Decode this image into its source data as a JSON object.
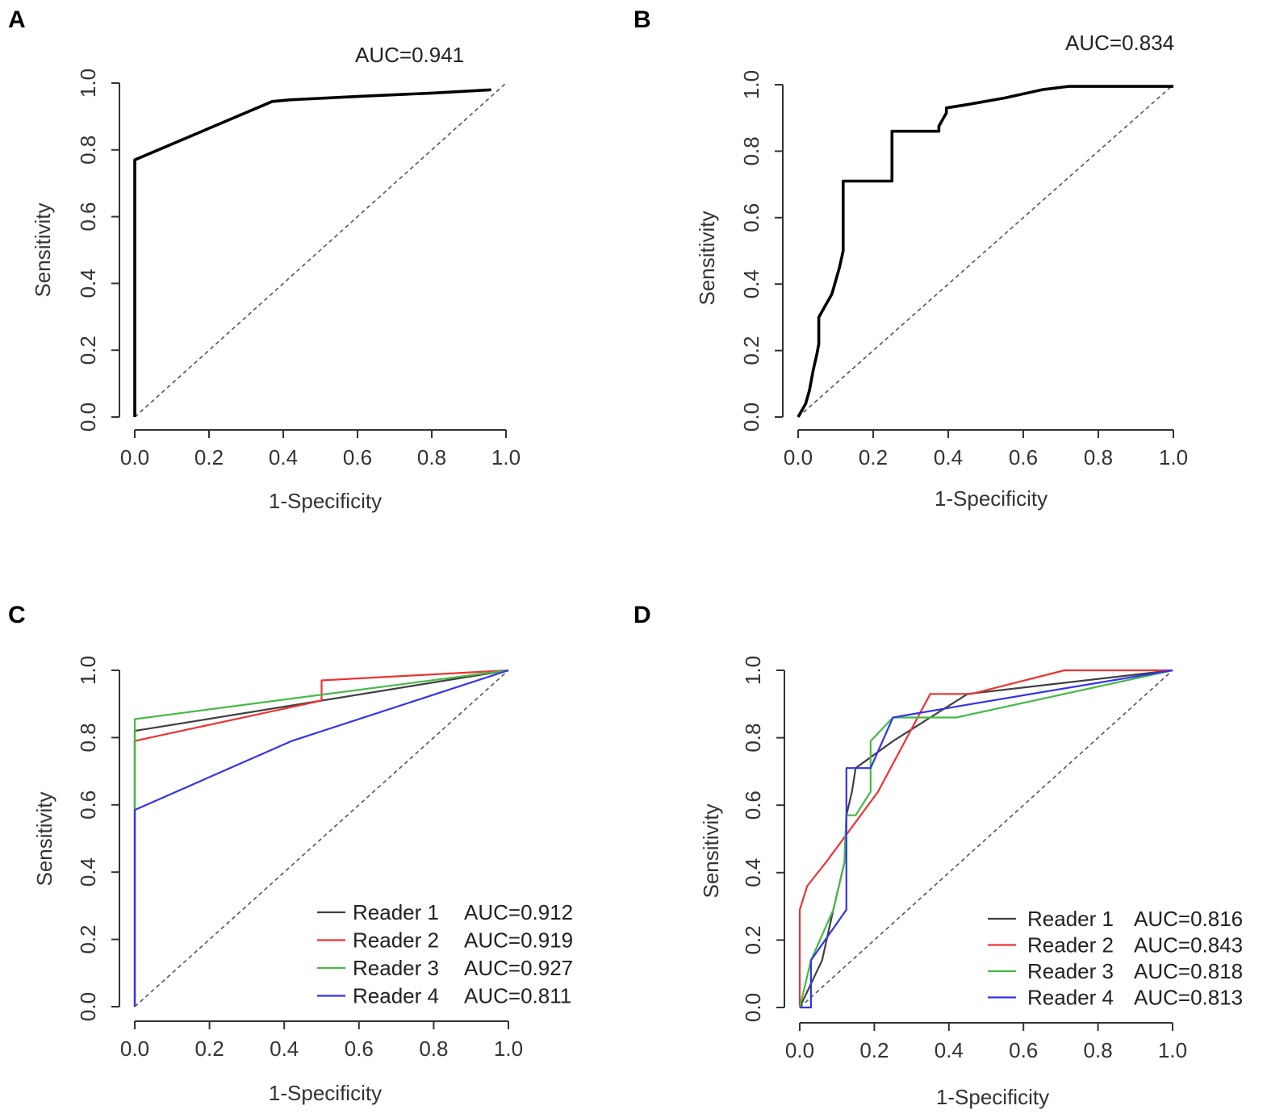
{
  "chart_data": [
    {
      "panel": "A",
      "type": "line",
      "title": "",
      "xlabel": "1-Specificity",
      "ylabel": "Sensitivity",
      "xlim": [
        0,
        1
      ],
      "ylim": [
        0,
        1
      ],
      "xticks": [
        "0.0",
        "0.2",
        "0.4",
        "0.6",
        "0.8",
        "1.0"
      ],
      "yticks": [
        "0.0",
        "0.2",
        "0.4",
        "0.6",
        "0.8",
        "1.0"
      ],
      "auc_text": "AUC=0.941",
      "reference_line": "diagonal",
      "series": [
        {
          "name": "ROC",
          "color": "#000000",
          "x": [
            0.0,
            0.0,
            0.0,
            0.36,
            0.37,
            0.42,
            0.6,
            0.8,
            0.96
          ],
          "y": [
            0.0,
            0.76,
            0.77,
            0.94,
            0.945,
            0.95,
            0.96,
            0.97,
            0.98
          ]
        }
      ]
    },
    {
      "panel": "B",
      "type": "line",
      "title": "",
      "xlabel": "1-Specificity",
      "ylabel": "Sensitivity",
      "xlim": [
        0,
        1
      ],
      "ylim": [
        0,
        1
      ],
      "xticks": [
        "0.0",
        "0.2",
        "0.4",
        "0.6",
        "0.8",
        "1.0"
      ],
      "yticks": [
        "0.0",
        "0.2",
        "0.4",
        "0.6",
        "0.8",
        "1.0"
      ],
      "auc_text": "AUC=0.834",
      "reference_line": "diagonal",
      "series": [
        {
          "name": "ROC",
          "color": "#000000",
          "x": [
            0.0,
            0.02,
            0.03,
            0.04,
            0.05,
            0.055,
            0.055,
            0.07,
            0.09,
            0.11,
            0.12,
            0.12,
            0.25,
            0.25,
            0.375,
            0.375,
            0.395,
            0.395,
            0.45,
            0.55,
            0.65,
            0.72,
            1.0
          ],
          "y": [
            0.0,
            0.04,
            0.08,
            0.14,
            0.19,
            0.22,
            0.3,
            0.33,
            0.37,
            0.45,
            0.5,
            0.71,
            0.71,
            0.86,
            0.86,
            0.875,
            0.915,
            0.93,
            0.94,
            0.96,
            0.985,
            0.995,
            0.995
          ]
        }
      ]
    },
    {
      "panel": "C",
      "type": "line",
      "title": "",
      "xlabel": "1-Specificity",
      "ylabel": "Sensitivity",
      "xlim": [
        0,
        1
      ],
      "ylim": [
        0,
        1
      ],
      "xticks": [
        "0.0",
        "0.2",
        "0.4",
        "0.6",
        "0.8",
        "1.0"
      ],
      "yticks": [
        "0.0",
        "0.2",
        "0.4",
        "0.6",
        "0.8",
        "1.0"
      ],
      "reference_line": "diagonal",
      "legend_position": "bottom-right",
      "series": [
        {
          "name": "Reader 1",
          "auc": "AUC=0.912",
          "color": "#404040",
          "x": [
            0.0,
            0.0,
            1.0
          ],
          "y": [
            0.0,
            0.82,
            1.0
          ]
        },
        {
          "name": "Reader 2",
          "auc": "AUC=0.919",
          "color": "#ee3333",
          "x": [
            0.0,
            0.0,
            0.5,
            0.5,
            1.0
          ],
          "y": [
            0.0,
            0.79,
            0.91,
            0.97,
            1.0
          ]
        },
        {
          "name": "Reader 3",
          "auc": "AUC=0.927",
          "color": "#44bb44",
          "x": [
            0.0,
            0.0,
            1.0
          ],
          "y": [
            0.0,
            0.855,
            1.0
          ]
        },
        {
          "name": "Reader 4",
          "auc": "AUC=0.811",
          "color": "#3333ee",
          "x": [
            0.0,
            0.0,
            0.42,
            1.0
          ],
          "y": [
            0.0,
            0.585,
            0.79,
            1.0
          ]
        }
      ]
    },
    {
      "panel": "D",
      "type": "line",
      "title": "",
      "xlabel": "1-Specificity",
      "ylabel": "Sensitivity",
      "xlim": [
        0,
        1
      ],
      "ylim": [
        0,
        1
      ],
      "xticks": [
        "0.0",
        "0.2",
        "0.4",
        "0.6",
        "0.8",
        "1.0"
      ],
      "yticks": [
        "0.0",
        "0.2",
        "0.4",
        "0.6",
        "0.8",
        "1.0"
      ],
      "reference_line": "diagonal",
      "legend_position": "bottom-right",
      "series": [
        {
          "name": "Reader 1",
          "auc": "AUC=0.816",
          "color": "#404040",
          "x": [
            0.0,
            0.03,
            0.06,
            0.09,
            0.12,
            0.125,
            0.14,
            0.15,
            0.25,
            0.35,
            0.45,
            1.0
          ],
          "y": [
            0.0,
            0.07,
            0.14,
            0.29,
            0.43,
            0.57,
            0.64,
            0.71,
            0.79,
            0.86,
            0.93,
            1.0
          ]
        },
        {
          "name": "Reader 2",
          "auc": "AUC=0.843",
          "color": "#ee3333",
          "x": [
            0.0,
            0.0,
            0.02,
            0.07,
            0.21,
            0.35,
            0.46,
            0.71,
            1.0
          ],
          "y": [
            0.0,
            0.29,
            0.36,
            0.43,
            0.64,
            0.93,
            0.93,
            1.0,
            1.0
          ]
        },
        {
          "name": "Reader 3",
          "auc": "AUC=0.818",
          "color": "#44bb44",
          "x": [
            0.0,
            0.03,
            0.09,
            0.12,
            0.125,
            0.125,
            0.15,
            0.19,
            0.19,
            0.25,
            0.29,
            0.375,
            0.42,
            1.0
          ],
          "y": [
            0.0,
            0.14,
            0.29,
            0.43,
            0.57,
            0.57,
            0.57,
            0.64,
            0.79,
            0.86,
            0.86,
            0.86,
            0.86,
            1.0
          ]
        },
        {
          "name": "Reader 4",
          "auc": "AUC=0.813",
          "color": "#3333ee",
          "x": [
            0.0,
            0.0,
            0.03,
            0.03,
            0.125,
            0.125,
            0.19,
            0.25,
            0.46,
            1.0
          ],
          "y": [
            0.0,
            0.0,
            0.0,
            0.14,
            0.29,
            0.71,
            0.71,
            0.86,
            0.9,
            1.0
          ]
        }
      ]
    }
  ]
}
